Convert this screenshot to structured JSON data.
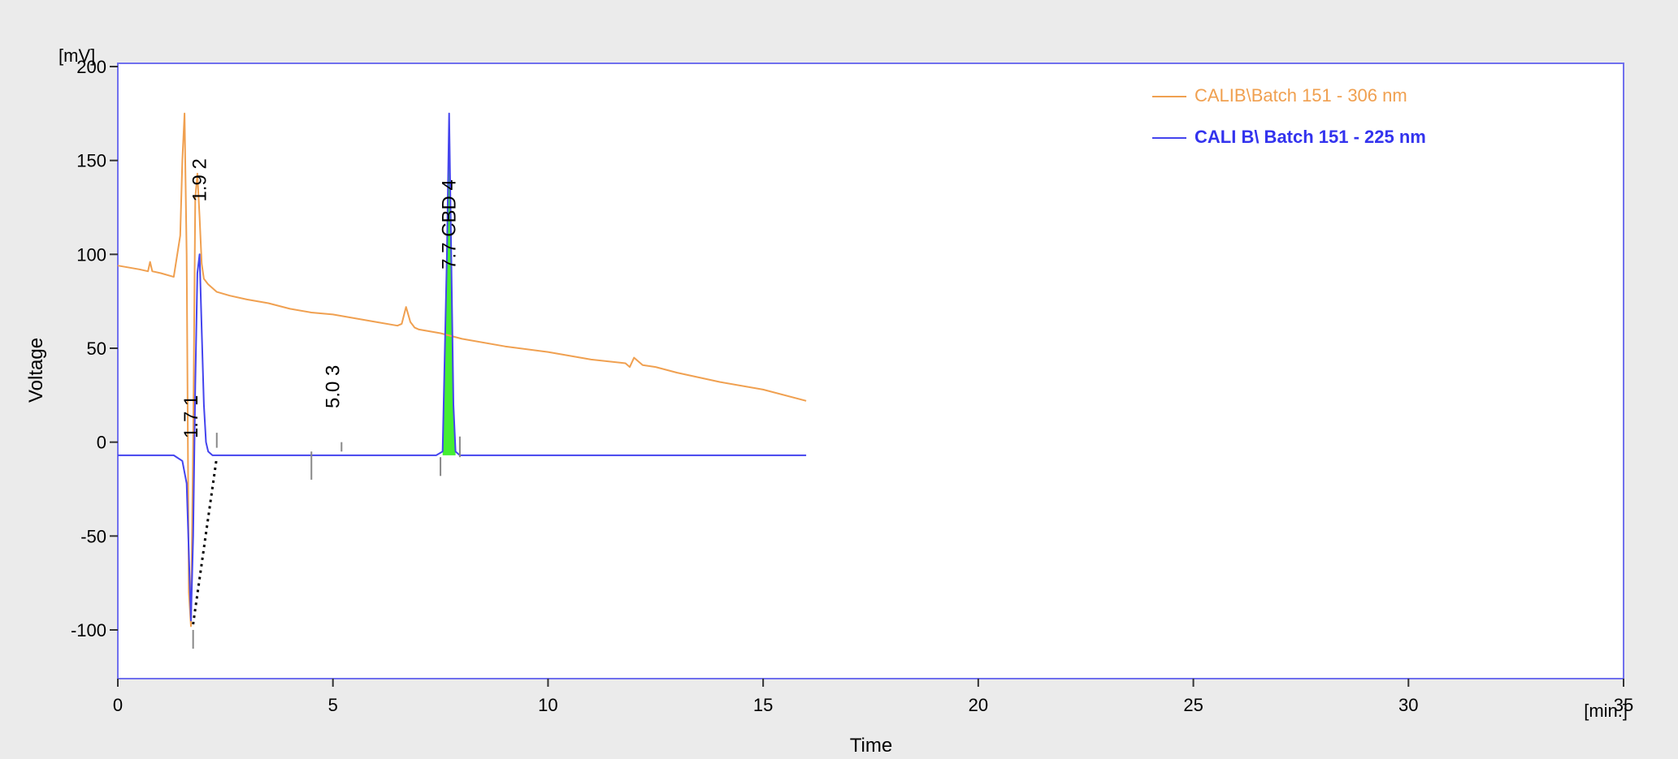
{
  "chart_data": {
    "type": "line",
    "xlabel": "Time",
    "xunit": "[min.]",
    "ylabel": "Voltage",
    "yunit": "[mV]",
    "xlim": [
      0,
      35
    ],
    "ylim": [
      -125,
      200
    ],
    "xticks": [
      0,
      5,
      10,
      15,
      20,
      25,
      30,
      35
    ],
    "yticks": [
      -100,
      -50,
      0,
      50,
      100,
      150,
      200
    ],
    "grid": false,
    "legend_position": "top-right",
    "series": [
      {
        "name": "CALIB\\Batch 151 - 306 nm",
        "color": "#f0a050",
        "x": [
          0,
          0.5,
          0.7,
          0.75,
          0.8,
          1.0,
          1.3,
          1.45,
          1.5,
          1.55,
          1.6,
          1.65,
          1.7,
          1.75,
          1.8,
          1.85,
          1.9,
          1.95,
          2.0,
          2.1,
          2.3,
          2.6,
          3.0,
          3.5,
          4.0,
          4.5,
          5.0,
          5.5,
          6.0,
          6.5,
          6.6,
          6.7,
          6.8,
          6.9,
          7.0,
          7.5,
          8.0,
          9.0,
          10.0,
          11.0,
          11.8,
          11.9,
          12.0,
          12.1,
          12.2,
          12.5,
          13.0,
          14.0,
          15.0,
          16.0
        ],
        "y": [
          94,
          92,
          91,
          96,
          91,
          90,
          88,
          110,
          150,
          175,
          100,
          -80,
          -98,
          0,
          130,
          143,
          120,
          95,
          87,
          84,
          80,
          78,
          76,
          74,
          71,
          69,
          68,
          66,
          64,
          62,
          63,
          72,
          64,
          61,
          60,
          58,
          55,
          51,
          48,
          44,
          42,
          40,
          45,
          43,
          41,
          40,
          37,
          32,
          28,
          22
        ]
      },
      {
        "name": "CALI B\\ Batch 151 - 225 nm",
        "color": "#4444ee",
        "x": [
          0,
          1.3,
          1.5,
          1.6,
          1.7,
          1.75,
          1.8,
          1.85,
          1.9,
          1.95,
          2.0,
          2.05,
          2.1,
          2.2,
          2.5,
          4.5,
          5.0,
          7.4,
          7.55,
          7.65,
          7.7,
          7.75,
          7.8,
          7.85,
          7.95,
          8.2,
          16.0
        ],
        "y": [
          -7,
          -7,
          -10,
          -22,
          -95,
          -50,
          30,
          90,
          100,
          60,
          20,
          0,
          -5,
          -7,
          -7,
          -7,
          -7,
          -7,
          -5,
          100,
          175,
          100,
          20,
          -5,
          -7,
          -7,
          -7
        ]
      }
    ],
    "peaks": [
      {
        "id": "1",
        "rt_label": "1.7",
        "x": 1.7
      },
      {
        "id": "2",
        "rt_label": "1.9",
        "x": 1.9
      },
      {
        "id": "3",
        "rt_label": "5.0",
        "x": 5.0
      },
      {
        "id": "4",
        "rt_label": "7.7 CBD",
        "x": 7.7
      }
    ]
  }
}
